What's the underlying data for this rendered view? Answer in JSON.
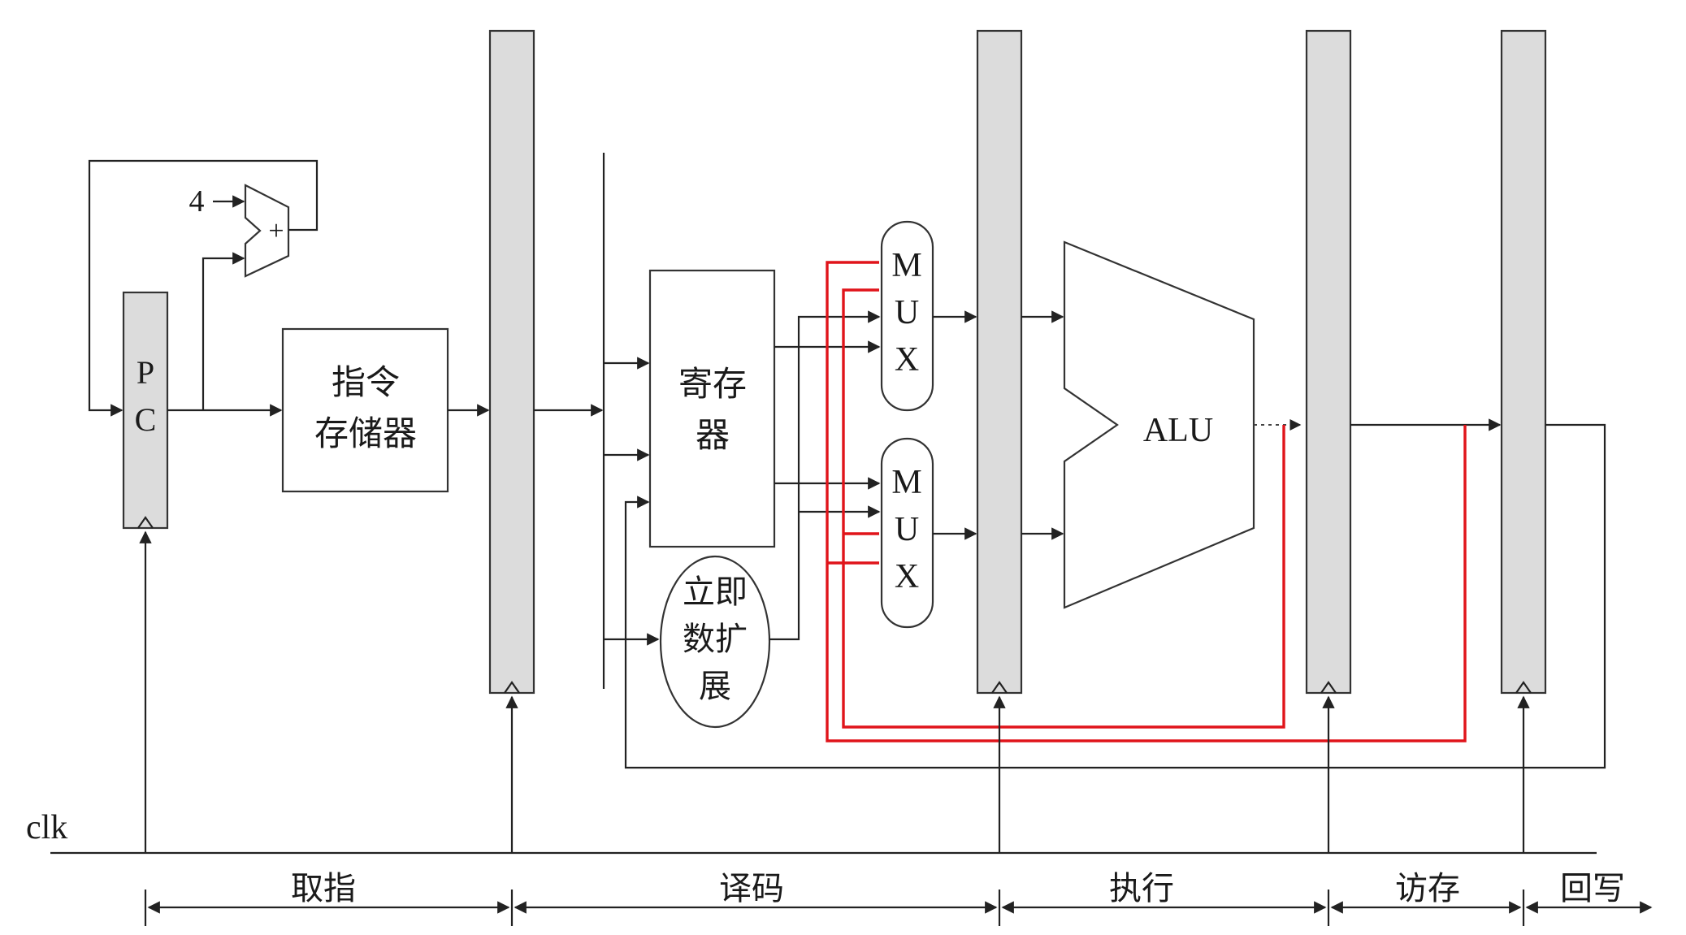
{
  "colors": {
    "wire": "#222222",
    "forward_path": "#e0141a",
    "pipeline_register": "#dcdcdc"
  },
  "labels": {
    "adder_const": "4",
    "adder_op": "+",
    "pc": [
      "P",
      "C"
    ],
    "instr_mem": [
      "指令",
      "存储器"
    ],
    "regfile": [
      "寄存",
      "器"
    ],
    "imm_ext": [
      "立即",
      "数扩",
      "展"
    ],
    "mux_letters": [
      "M",
      "U",
      "X"
    ],
    "alu": "ALU",
    "clk": "clk"
  },
  "stages": [
    "取指",
    "译码",
    "执行",
    "访存",
    "回写"
  ]
}
